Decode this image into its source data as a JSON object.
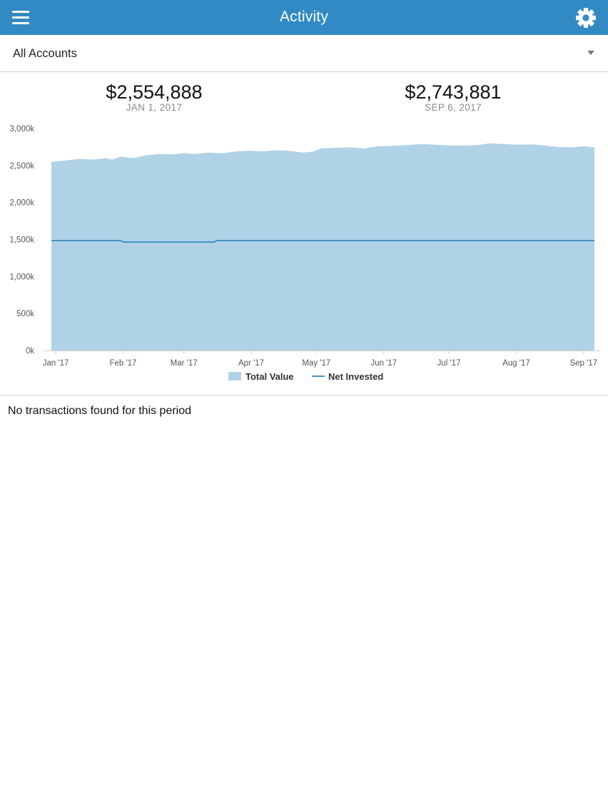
{
  "header": {
    "title": "Activity",
    "menu_icon": "hamburger-menu-icon",
    "settings_icon": "gear-icon"
  },
  "account_selector": {
    "selected": "All Accounts",
    "icon": "caret-down-icon"
  },
  "summary": {
    "start": {
      "amount": "$2,554,888",
      "date": "JAN 1, 2017"
    },
    "end": {
      "amount": "$2,743,881",
      "date": "SEP 6, 2017"
    }
  },
  "chart_data": {
    "type": "area",
    "title": "",
    "xlabel": "",
    "ylabel": "",
    "y_unit": "k",
    "ylim": [
      0,
      3000
    ],
    "y_ticks": [
      "0k",
      "500k",
      "1,000k",
      "1,500k",
      "2,000k",
      "2,500k",
      "3,000k"
    ],
    "y_tick_values": [
      0,
      500,
      1000,
      1500,
      2000,
      2500,
      3000
    ],
    "x_ticks": [
      "Jan '17",
      "Feb '17",
      "Mar '17",
      "Apr '17",
      "May '17",
      "Jun '17",
      "Jul '17",
      "Aug '17",
      "Sep '17"
    ],
    "x_tick_dates": [
      "2017-01-01",
      "2017-02-01",
      "2017-03-01",
      "2017-04-01",
      "2017-05-01",
      "2017-06-01",
      "2017-07-01",
      "2017-08-01",
      "2017-09-01"
    ],
    "xlim": [
      "2016-12-30",
      "2017-09-06"
    ],
    "legend_position": "bottom-center",
    "grid": false,
    "series": [
      {
        "name": "Total Value",
        "style": "area",
        "color": "#b0d2e6",
        "points": [
          [
            "2016-12-30",
            2550
          ],
          [
            "2017-01-01",
            2555
          ],
          [
            "2017-01-06",
            2570
          ],
          [
            "2017-01-12",
            2590
          ],
          [
            "2017-01-18",
            2580
          ],
          [
            "2017-01-24",
            2600
          ],
          [
            "2017-01-27",
            2580
          ],
          [
            "2017-01-31",
            2620
          ],
          [
            "2017-02-06",
            2600
          ],
          [
            "2017-02-12",
            2640
          ],
          [
            "2017-02-18",
            2655
          ],
          [
            "2017-02-25",
            2650
          ],
          [
            "2017-03-01",
            2670
          ],
          [
            "2017-03-06",
            2655
          ],
          [
            "2017-03-12",
            2675
          ],
          [
            "2017-03-19",
            2665
          ],
          [
            "2017-03-25",
            2690
          ],
          [
            "2017-03-31",
            2700
          ],
          [
            "2017-04-06",
            2690
          ],
          [
            "2017-04-12",
            2705
          ],
          [
            "2017-04-18",
            2700
          ],
          [
            "2017-04-25",
            2675
          ],
          [
            "2017-04-30",
            2690
          ],
          [
            "2017-05-03",
            2730
          ],
          [
            "2017-05-10",
            2740
          ],
          [
            "2017-05-17",
            2745
          ],
          [
            "2017-05-23",
            2730
          ],
          [
            "2017-05-29",
            2760
          ],
          [
            "2017-06-05",
            2765
          ],
          [
            "2017-06-12",
            2775
          ],
          [
            "2017-06-18",
            2790
          ],
          [
            "2017-06-25",
            2780
          ],
          [
            "2017-07-01",
            2770
          ],
          [
            "2017-07-08",
            2770
          ],
          [
            "2017-07-14",
            2775
          ],
          [
            "2017-07-20",
            2800
          ],
          [
            "2017-07-26",
            2790
          ],
          [
            "2017-08-01",
            2780
          ],
          [
            "2017-08-08",
            2785
          ],
          [
            "2017-08-14",
            2770
          ],
          [
            "2017-08-20",
            2750
          ],
          [
            "2017-08-26",
            2745
          ],
          [
            "2017-09-01",
            2760
          ],
          [
            "2017-09-06",
            2744
          ]
        ]
      },
      {
        "name": "Net Invested",
        "style": "line",
        "color": "#2d86bf",
        "points": [
          [
            "2016-12-30",
            1485
          ],
          [
            "2017-01-31",
            1485
          ],
          [
            "2017-02-01",
            1465
          ],
          [
            "2017-03-15",
            1465
          ],
          [
            "2017-03-16",
            1485
          ],
          [
            "2017-09-06",
            1485
          ]
        ]
      }
    ]
  }
}
